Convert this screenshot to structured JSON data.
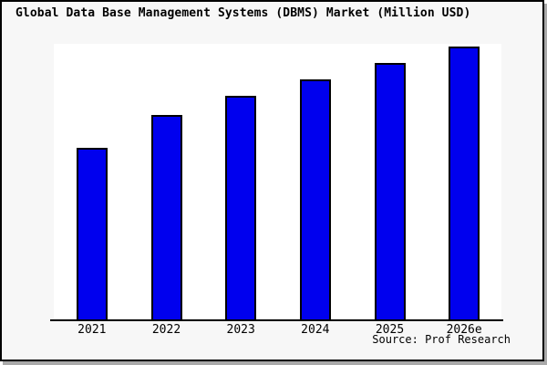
{
  "window": {
    "background": "#f7f7f7",
    "frame_border_color": "#000000",
    "shadow_color": "#a9a9a9"
  },
  "header": {
    "title": "Global Data Base Management Systems (DBMS) Market (Million USD)"
  },
  "footer": {
    "source": "Source: Prof Research"
  },
  "chart_data": {
    "type": "bar",
    "title": "Global Data Base Management Systems (DBMS) Market (Million USD)",
    "categories": [
      "2021",
      "2022",
      "2023",
      "2024",
      "2025",
      "2026e"
    ],
    "values": [
      63,
      75,
      82,
      88,
      94,
      100
    ],
    "value_scale": "relative units; no y-axis ticks or gridlines shown, tallest bar (2026e) = 100",
    "xlabel": "",
    "ylabel": "",
    "ylim": [
      0,
      101
    ],
    "grid": false,
    "legend": false,
    "bar_color": "#0000ee",
    "bar_border_color": "#000000",
    "plot_background": "#ffffff",
    "axis_color": "#000000",
    "source": "Source: Prof Research"
  }
}
